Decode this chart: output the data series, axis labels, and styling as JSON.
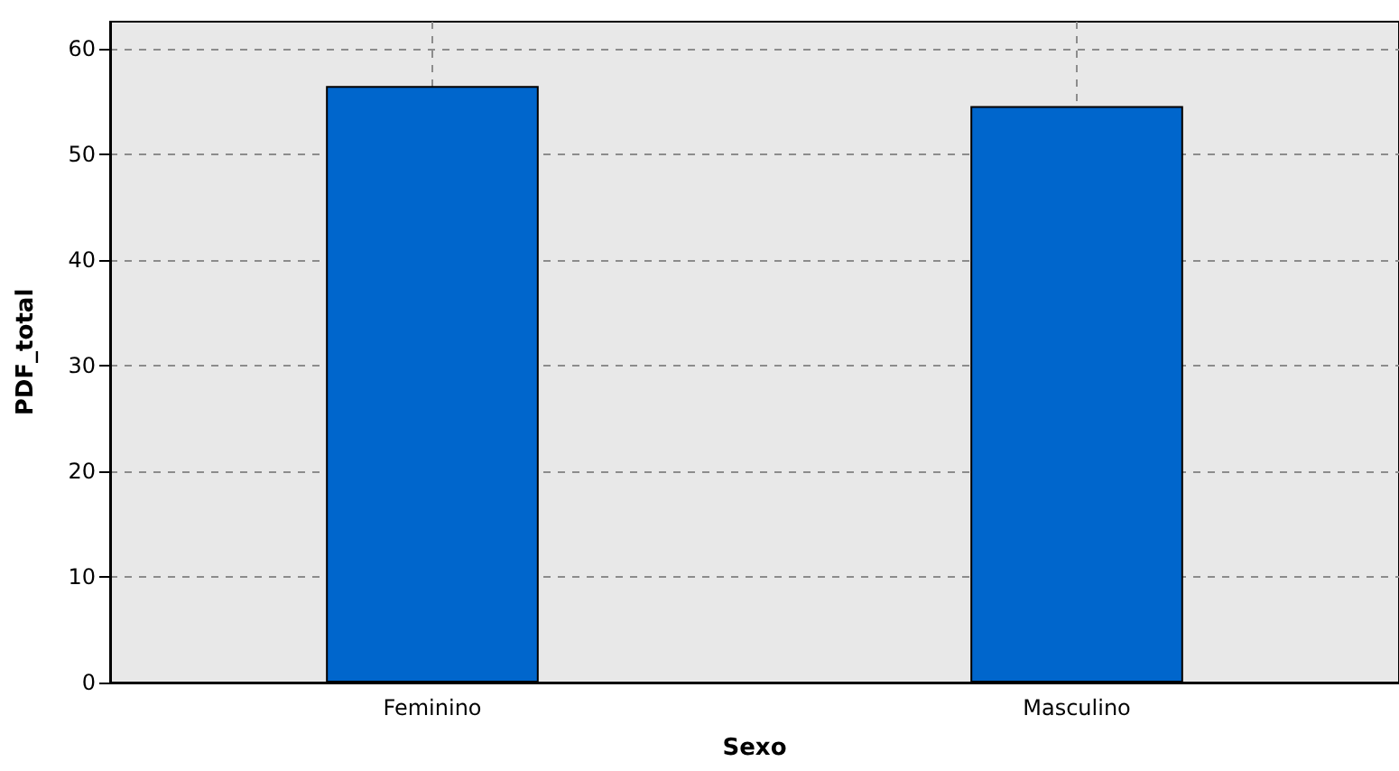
{
  "chart_data": {
    "type": "bar",
    "xlabel": "Sexo",
    "ylabel": "PDF_total",
    "categories": [
      "Feminino",
      "Masculino"
    ],
    "values": [
      56.5,
      54.6
    ],
    "color": "#0066cc",
    "ylim": [
      0,
      62.6
    ],
    "yticks": [
      0,
      10,
      20,
      30,
      40,
      50,
      60
    ],
    "grid": true
  }
}
